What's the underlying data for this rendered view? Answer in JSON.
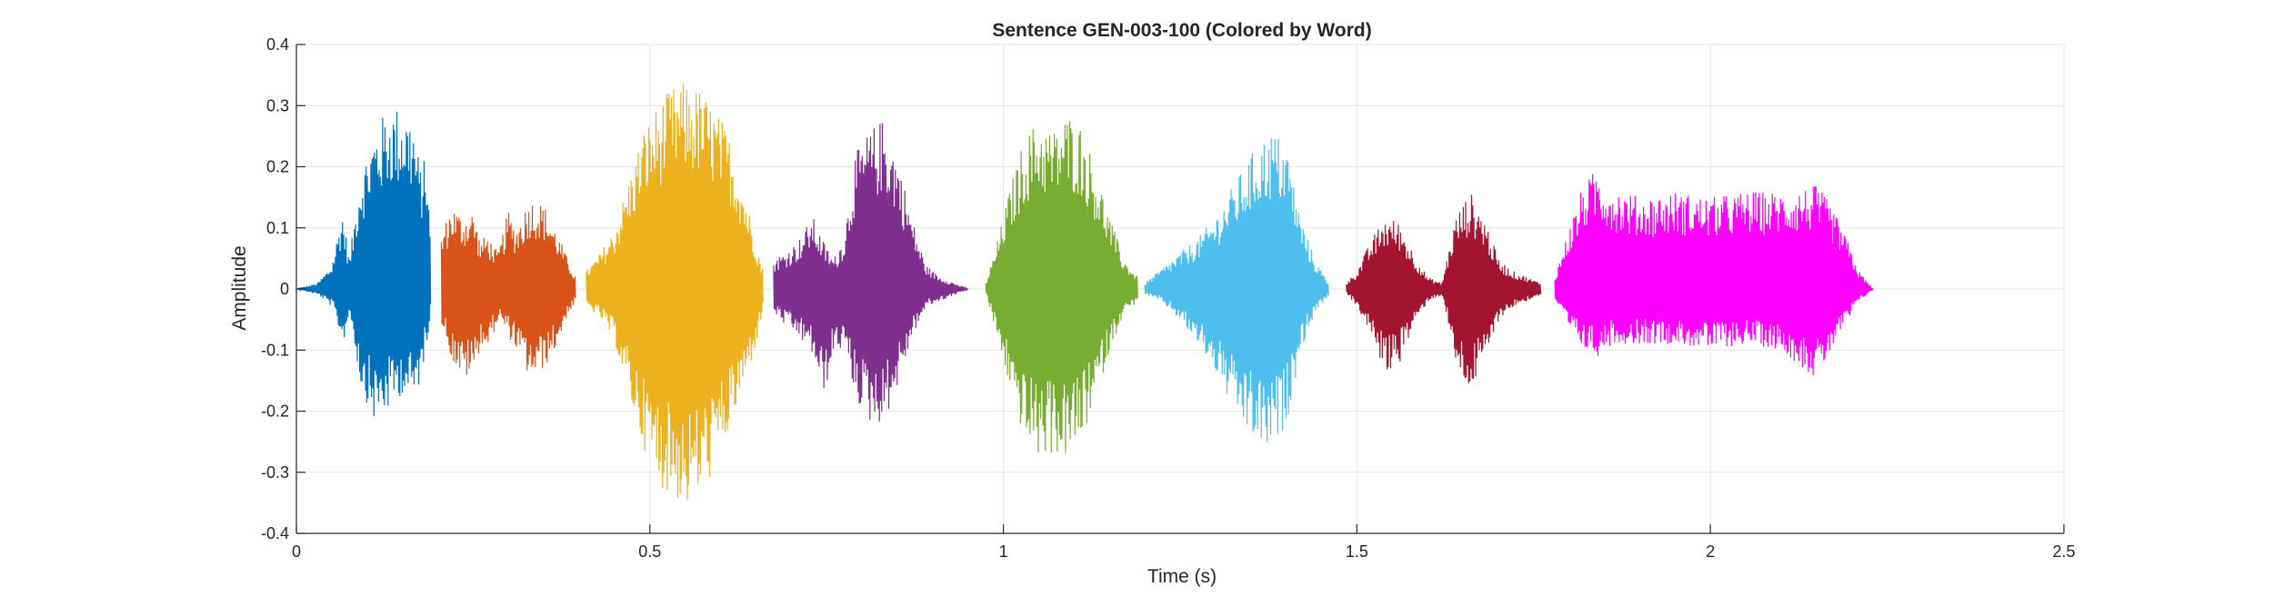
{
  "chart_data": {
    "type": "line",
    "title": "Sentence GEN-003-100 (Colored by Word)",
    "xlabel": "Time (s)",
    "ylabel": "Amplitude",
    "xlim": [
      0,
      2.5
    ],
    "ylim": [
      -0.4,
      0.4
    ],
    "x_ticks": [
      0,
      0.5,
      1,
      1.5,
      2,
      2.5
    ],
    "x_tick_labels": [
      "0",
      "0.5",
      "1",
      "1.5",
      "2",
      "2.5"
    ],
    "y_ticks": [
      0.4,
      0.3,
      0.2,
      0.1,
      0,
      -0.1,
      -0.2,
      -0.3,
      -0.4
    ],
    "y_tick_labels": [
      "0.4",
      "0.3",
      "0.2",
      "0.1",
      "0",
      "-0.1",
      "-0.2",
      "-0.3",
      "-0.4"
    ],
    "grid": true,
    "legend": "none",
    "series": [
      {
        "color": "#0072BD",
        "x": [
          0.0,
          0.03,
          0.05,
          0.065,
          0.075,
          0.09,
          0.11,
          0.13,
          0.15,
          0.165,
          0.175,
          0.185,
          0.19
        ],
        "max": [
          0.0,
          0.01,
          0.04,
          0.13,
          0.05,
          0.19,
          0.26,
          0.3,
          0.3,
          0.28,
          0.2,
          0.22,
          0.06
        ],
        "min": [
          0.0,
          -0.01,
          -0.03,
          -0.09,
          -0.04,
          -0.16,
          -0.22,
          -0.2,
          -0.17,
          -0.19,
          -0.15,
          -0.08,
          -0.02
        ]
      },
      {
        "color": "#D95319",
        "x": [
          0.205,
          0.22,
          0.235,
          0.25,
          0.26,
          0.27,
          0.285,
          0.3,
          0.31,
          0.33,
          0.35,
          0.37,
          0.38,
          0.395
        ],
        "max": [
          0.09,
          0.14,
          0.12,
          0.13,
          0.08,
          0.09,
          0.06,
          0.13,
          0.1,
          0.15,
          0.14,
          0.09,
          0.06,
          0.02
        ],
        "min": [
          -0.06,
          -0.12,
          -0.15,
          -0.14,
          -0.09,
          -0.1,
          -0.05,
          -0.08,
          -0.1,
          -0.15,
          -0.13,
          -0.09,
          -0.05,
          -0.02
        ]
      },
      {
        "color": "#EDB120",
        "x": [
          0.41,
          0.43,
          0.45,
          0.47,
          0.49,
          0.51,
          0.53,
          0.55,
          0.57,
          0.59,
          0.61,
          0.63,
          0.65,
          0.66
        ],
        "max": [
          0.03,
          0.06,
          0.1,
          0.18,
          0.26,
          0.3,
          0.33,
          0.34,
          0.33,
          0.3,
          0.26,
          0.18,
          0.08,
          0.03
        ],
        "min": [
          -0.03,
          -0.05,
          -0.09,
          -0.18,
          -0.26,
          -0.32,
          -0.34,
          -0.36,
          -0.34,
          -0.3,
          -0.24,
          -0.17,
          -0.09,
          -0.03
        ]
      },
      {
        "color": "#7E2F8E",
        "x": [
          0.675,
          0.69,
          0.71,
          0.73,
          0.745,
          0.76,
          0.775,
          0.79,
          0.81,
          0.83,
          0.85,
          0.87,
          0.89,
          0.91,
          0.93,
          0.95
        ],
        "max": [
          0.05,
          0.06,
          0.08,
          0.12,
          0.08,
          0.05,
          0.09,
          0.22,
          0.26,
          0.28,
          0.22,
          0.12,
          0.04,
          0.02,
          0.01,
          0.0
        ],
        "min": [
          -0.04,
          -0.06,
          -0.08,
          -0.11,
          -0.18,
          -0.1,
          -0.1,
          -0.18,
          -0.22,
          -0.22,
          -0.16,
          -0.08,
          -0.03,
          -0.02,
          -0.01,
          0.0
        ]
      },
      {
        "color": "#77AC30",
        "x": [
          0.975,
          0.99,
          1.01,
          1.03,
          1.05,
          1.07,
          1.09,
          1.11,
          1.13,
          1.15,
          1.17,
          1.19
        ],
        "max": [
          0.01,
          0.07,
          0.17,
          0.25,
          0.28,
          0.26,
          0.29,
          0.27,
          0.2,
          0.12,
          0.05,
          0.02
        ],
        "min": [
          -0.01,
          -0.08,
          -0.17,
          -0.25,
          -0.28,
          -0.27,
          -0.28,
          -0.25,
          -0.18,
          -0.1,
          -0.04,
          -0.02
        ]
      },
      {
        "color": "#4DBEEE",
        "x": [
          1.2,
          1.22,
          1.24,
          1.26,
          1.28,
          1.3,
          1.32,
          1.34,
          1.36,
          1.38,
          1.4,
          1.42,
          1.44,
          1.46
        ],
        "max": [
          0.01,
          0.03,
          0.05,
          0.07,
          0.09,
          0.12,
          0.16,
          0.2,
          0.24,
          0.26,
          0.24,
          0.12,
          0.05,
          0.01
        ],
        "min": [
          -0.01,
          -0.02,
          -0.04,
          -0.07,
          -0.1,
          -0.14,
          -0.19,
          -0.23,
          -0.26,
          -0.27,
          -0.22,
          -0.1,
          -0.04,
          -0.01
        ]
      },
      {
        "color": "#A2142F",
        "x": [
          1.485,
          1.5,
          1.52,
          1.54,
          1.56,
          1.58,
          1.6,
          1.62,
          1.64,
          1.66,
          1.68,
          1.7,
          1.72,
          1.74,
          1.76
        ],
        "max": [
          0.01,
          0.03,
          0.08,
          0.12,
          0.11,
          0.06,
          0.02,
          0.01,
          0.12,
          0.16,
          0.12,
          0.05,
          0.03,
          0.02,
          0.01
        ],
        "min": [
          -0.01,
          -0.03,
          -0.08,
          -0.14,
          -0.12,
          -0.06,
          -0.02,
          -0.01,
          -0.13,
          -0.17,
          -0.12,
          -0.05,
          -0.03,
          -0.02,
          -0.01
        ]
      },
      {
        "color": "#FF00FF",
        "x": [
          1.78,
          1.8,
          1.82,
          1.84,
          1.86,
          1.9,
          1.95,
          2.0,
          2.05,
          2.1,
          2.15,
          2.17,
          2.19,
          2.21,
          2.23
        ],
        "max": [
          0.02,
          0.1,
          0.17,
          0.2,
          0.17,
          0.15,
          0.16,
          0.15,
          0.16,
          0.16,
          0.17,
          0.14,
          0.09,
          0.03,
          0.0
        ],
        "min": [
          -0.02,
          -0.07,
          -0.1,
          -0.11,
          -0.09,
          -0.09,
          -0.09,
          -0.1,
          -0.09,
          -0.1,
          -0.15,
          -0.1,
          -0.06,
          -0.02,
          0.0
        ]
      }
    ]
  }
}
